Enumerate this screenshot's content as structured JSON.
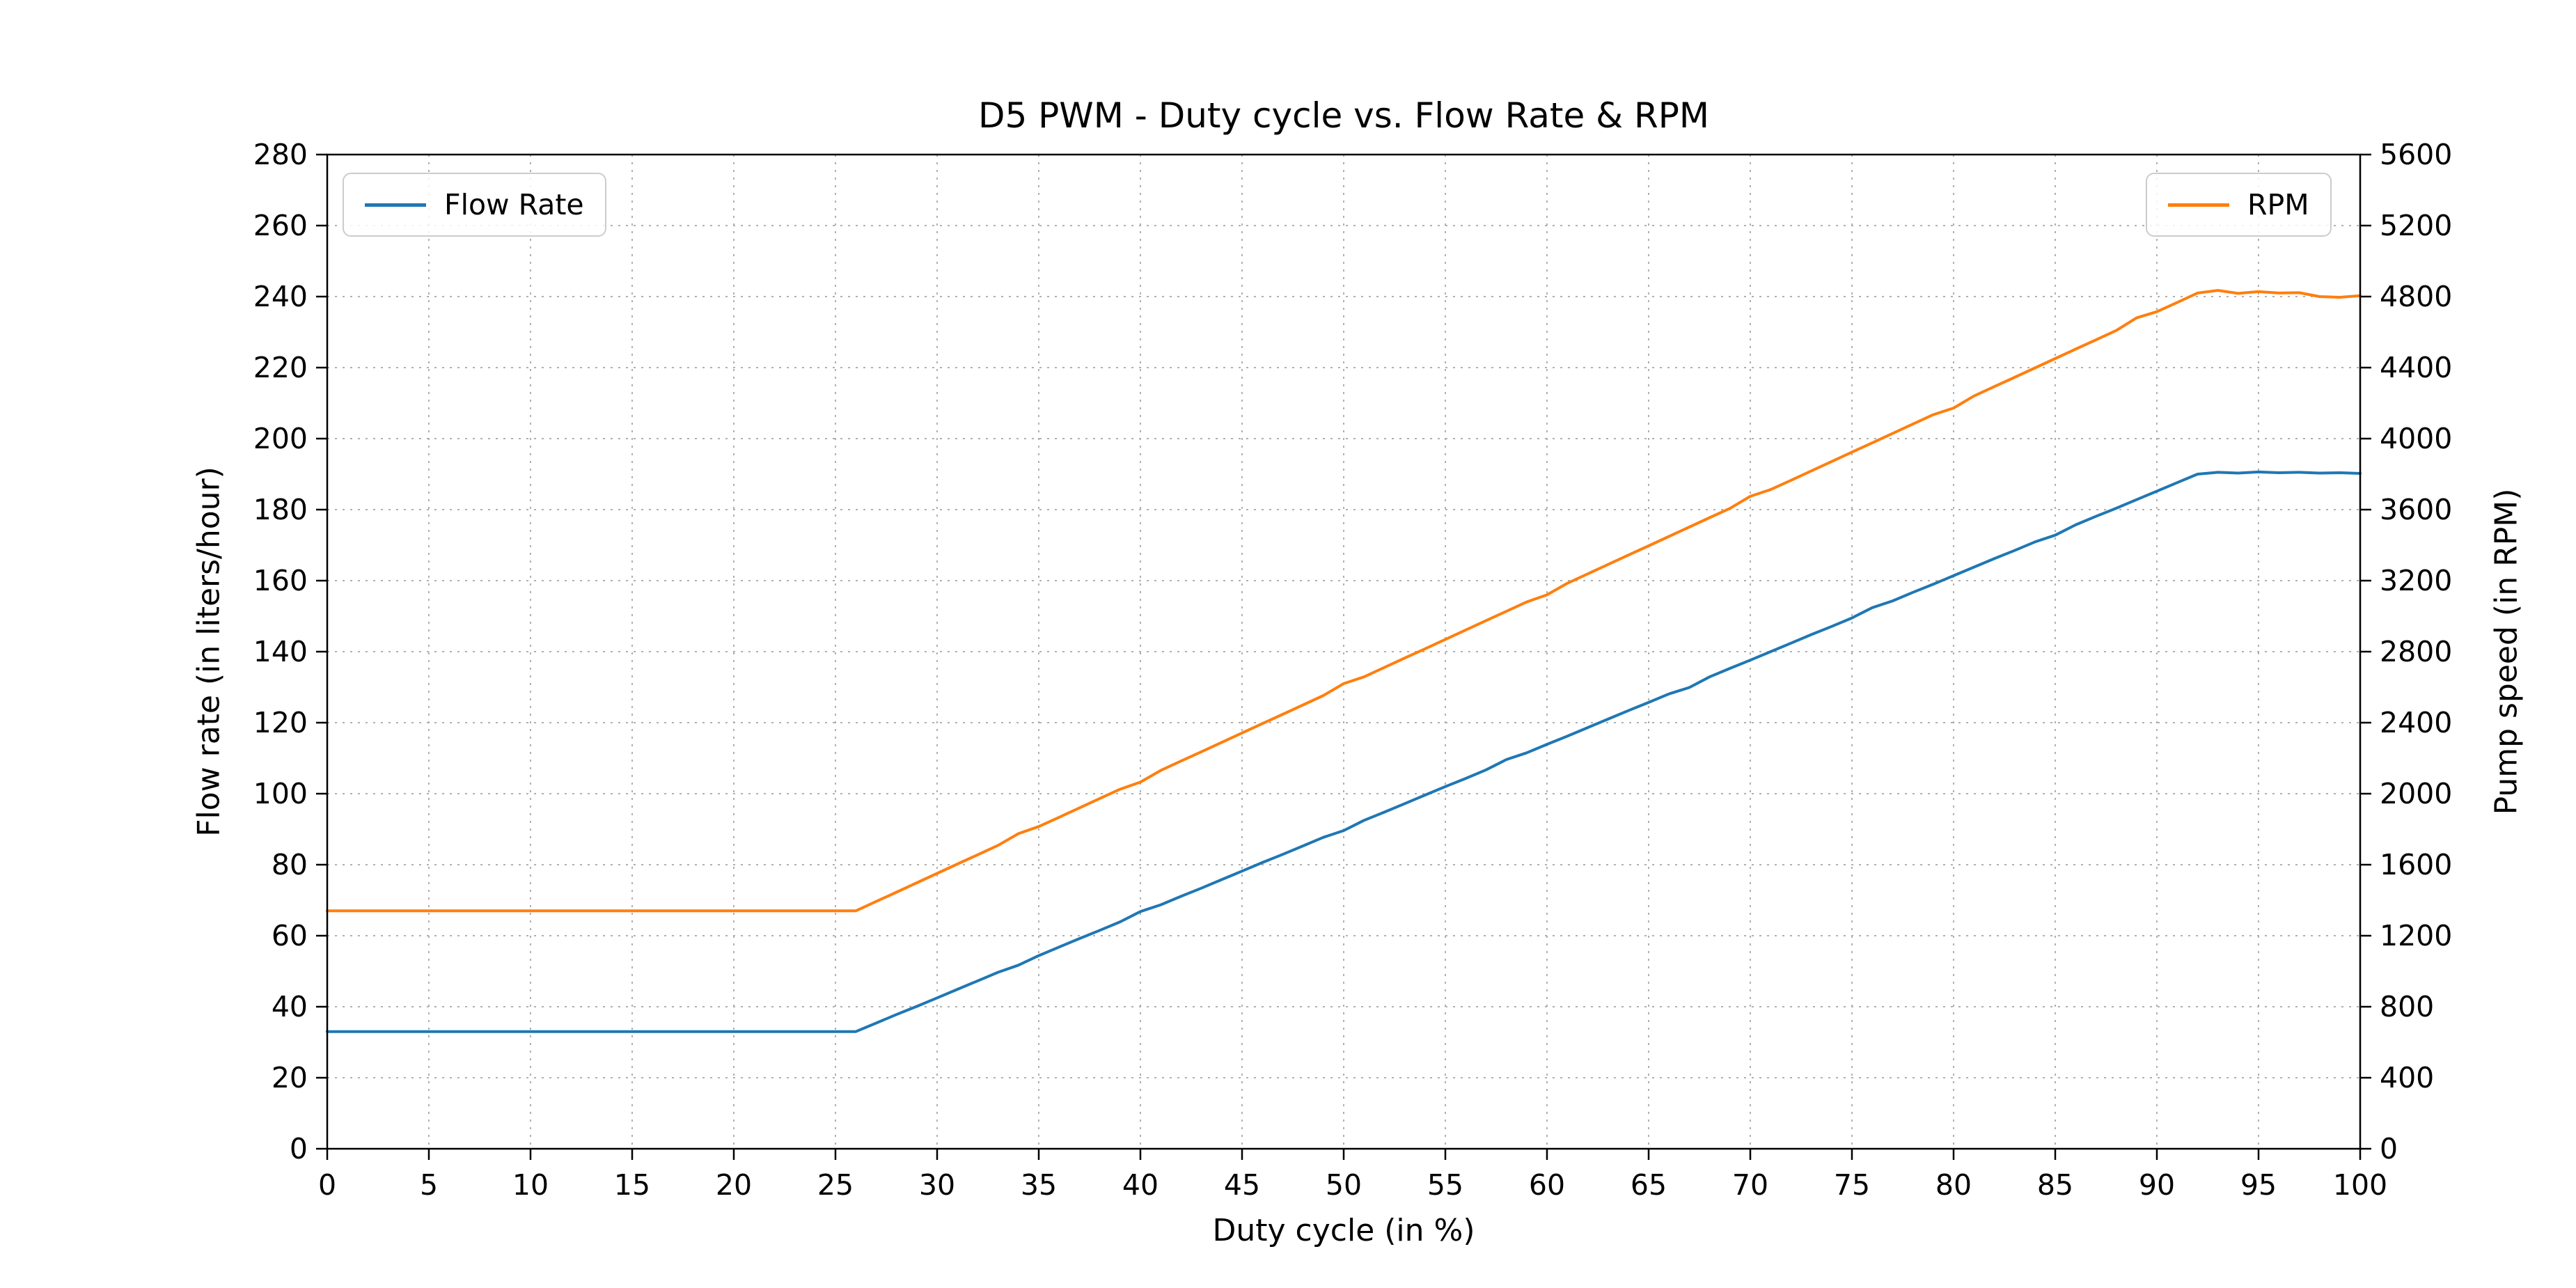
{
  "page": {
    "background": "#ffffff"
  },
  "chart_data": {
    "type": "line",
    "title": "D5 PWM - Duty cycle vs. Flow Rate & RPM",
    "xlabel": "Duty cycle (in %)",
    "grid": {
      "visible": true,
      "style": "dotted",
      "color": "#b0b0b0"
    },
    "x_axis": {
      "min": 0,
      "max": 100,
      "ticks": [
        0,
        5,
        10,
        15,
        20,
        25,
        30,
        35,
        40,
        45,
        50,
        55,
        60,
        65,
        70,
        75,
        80,
        85,
        90,
        95,
        100
      ]
    },
    "left_axis": {
      "label": "Flow rate (in liters/hour)",
      "min": 0,
      "max": 280,
      "ticks": [
        0,
        20,
        40,
        60,
        80,
        100,
        120,
        140,
        160,
        180,
        200,
        220,
        240,
        260,
        280
      ]
    },
    "right_axis": {
      "label": "Pump speed (in RPM)",
      "min": 0,
      "max": 5600,
      "ticks": [
        0,
        400,
        800,
        1200,
        1600,
        2000,
        2400,
        2800,
        3200,
        3600,
        4000,
        4400,
        4800,
        5200,
        5600
      ]
    },
    "legend": [
      {
        "label": "Flow Rate",
        "location": "upper left"
      },
      {
        "label": "RPM",
        "location": "upper right"
      }
    ],
    "x": [
      0,
      1,
      2,
      3,
      4,
      5,
      6,
      7,
      8,
      9,
      10,
      11,
      12,
      13,
      14,
      15,
      16,
      17,
      18,
      19,
      20,
      21,
      22,
      23,
      24,
      25,
      26,
      27,
      28,
      29,
      30,
      31,
      32,
      33,
      34,
      35,
      36,
      37,
      38,
      39,
      40,
      41,
      42,
      43,
      44,
      45,
      46,
      47,
      48,
      49,
      50,
      51,
      52,
      53,
      54,
      55,
      56,
      57,
      58,
      59,
      60,
      61,
      62,
      63,
      64,
      65,
      66,
      67,
      68,
      69,
      70,
      71,
      72,
      73,
      74,
      75,
      76,
      77,
      78,
      79,
      80,
      81,
      82,
      83,
      84,
      85,
      86,
      87,
      88,
      89,
      90,
      91,
      92,
      93,
      94,
      95,
      96,
      97,
      98,
      99,
      100
    ],
    "series": [
      {
        "name": "Flow Rate",
        "axis": "left",
        "color": "#1f77b4",
        "values": [
          33,
          33,
          33,
          33,
          33,
          33,
          33,
          33,
          33,
          33,
          33,
          33,
          33,
          33,
          33,
          33,
          33,
          33,
          33,
          33,
          33,
          33,
          33,
          33,
          33,
          33,
          33,
          35.4,
          37.8,
          40.1,
          42.5,
          44.9,
          47.3,
          49.7,
          51.7,
          54.4,
          56.8,
          59.2,
          61.5,
          63.9,
          66.8,
          68.7,
          71.1,
          73.4,
          75.8,
          78.2,
          80.6,
          82.9,
          85.3,
          87.7,
          89.6,
          92.5,
          94.8,
          97.2,
          99.6,
          102,
          104.3,
          106.7,
          109.6,
          111.5,
          113.9,
          116.2,
          118.6,
          121,
          123.4,
          125.7,
          128.1,
          129.9,
          132.9,
          135.3,
          137.6,
          140,
          142.4,
          144.8,
          147.1,
          149.5,
          152.4,
          154.3,
          156.7,
          159,
          161.4,
          163.8,
          166.2,
          168.5,
          170.9,
          172.8,
          175.7,
          178.1,
          180.4,
          182.8,
          185.2,
          187.6,
          190,
          190.5,
          190.3,
          190.6,
          190.4,
          190.5,
          190.3,
          190.4,
          190.2
        ]
      },
      {
        "name": "RPM",
        "axis": "right",
        "color": "#ff7f0e",
        "values": [
          1340,
          1340,
          1340,
          1340,
          1340,
          1340,
          1340,
          1340,
          1340,
          1340,
          1340,
          1340,
          1340,
          1340,
          1340,
          1340,
          1340,
          1340,
          1340,
          1340,
          1340,
          1340,
          1340,
          1340,
          1340,
          1340,
          1340,
          1393,
          1445,
          1498,
          1551,
          1604,
          1656,
          1709,
          1775,
          1815,
          1867,
          1920,
          1973,
          2025,
          2065,
          2131,
          2184,
          2236,
          2289,
          2342,
          2395,
          2447,
          2500,
          2553,
          2620,
          2658,
          2711,
          2764,
          2816,
          2869,
          2922,
          2975,
          3027,
          3080,
          3120,
          3185,
          3238,
          3291,
          3344,
          3396,
          3449,
          3502,
          3555,
          3607,
          3675,
          3713,
          3765,
          3818,
          3871,
          3924,
          3976,
          4029,
          4082,
          4135,
          4172,
          4240,
          4293,
          4345,
          4398,
          4451,
          4504,
          4556,
          4609,
          4680,
          4715,
          4767,
          4820,
          4835,
          4818,
          4828,
          4820,
          4822,
          4800,
          4796,
          4805
        ]
      }
    ]
  }
}
